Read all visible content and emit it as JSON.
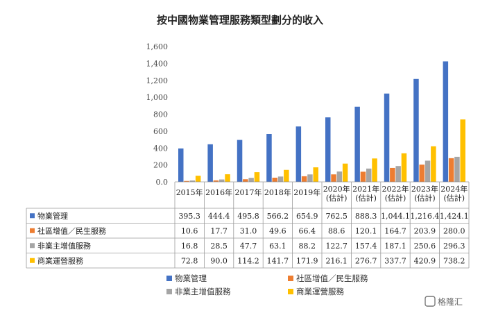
{
  "chart_data": {
    "type": "bar",
    "title": "按中國物業管理服務類型劃分的收入",
    "categories": [
      [
        "2015年"
      ],
      [
        "2016年"
      ],
      [
        "2017年"
      ],
      [
        "2018年"
      ],
      [
        "2019年"
      ],
      [
        "2020年",
        "(估計)"
      ],
      [
        "2021年",
        "(估計)"
      ],
      [
        "2022年",
        "(估計)"
      ],
      [
        "2023年",
        "(估計)"
      ],
      [
        "2024年",
        "(估計)"
      ]
    ],
    "ylim": [
      0,
      1600
    ],
    "yticks": [
      "0.0",
      "200",
      "400",
      "600",
      "800",
      "1,000",
      "1,200",
      "1,400",
      "1,600"
    ],
    "series": [
      {
        "name": "物業管理",
        "color": "#4472C4",
        "values": [
          395.3,
          444.4,
          495.8,
          566.2,
          654.9,
          762.5,
          888.3,
          1044.1,
          1216.4,
          1424.1
        ],
        "labels": [
          "395.3",
          "444.4",
          "495.8",
          "566.2",
          "654.9",
          "762.5",
          "888.3",
          "1,044.1",
          "1,216.4",
          "1,424.1"
        ]
      },
      {
        "name": "社區增值／民生服務",
        "color": "#ED7D31",
        "values": [
          10.6,
          17.7,
          31.0,
          49.6,
          66.4,
          88.6,
          120.1,
          164.7,
          203.9,
          280.0
        ],
        "labels": [
          "10.6",
          "17.7",
          "31.0",
          "49.6",
          "66.4",
          "88.6",
          "120.1",
          "164.7",
          "203.9",
          "280.0"
        ]
      },
      {
        "name": "非業主增值服務",
        "color": "#A5A5A5",
        "values": [
          16.8,
          28.5,
          47.7,
          63.1,
          88.2,
          122.7,
          157.4,
          187.1,
          250.6,
          296.3
        ],
        "labels": [
          "16.8",
          "28.5",
          "47.7",
          "63.1",
          "88.2",
          "122.7",
          "157.4",
          "187.1",
          "250.6",
          "296.3"
        ]
      },
      {
        "name": "商業運營服務",
        "color": "#FFC000",
        "values": [
          72.8,
          90.0,
          114.2,
          141.7,
          171.9,
          216.1,
          276.7,
          337.7,
          420.9,
          738.2
        ],
        "labels": [
          "72.8",
          "90.0",
          "114.2",
          "141.7",
          "171.9",
          "216.1",
          "276.7",
          "337.7",
          "420.9",
          "738.2"
        ]
      }
    ],
    "legend": "bottom",
    "grid": false
  },
  "watermark": "格隆汇"
}
